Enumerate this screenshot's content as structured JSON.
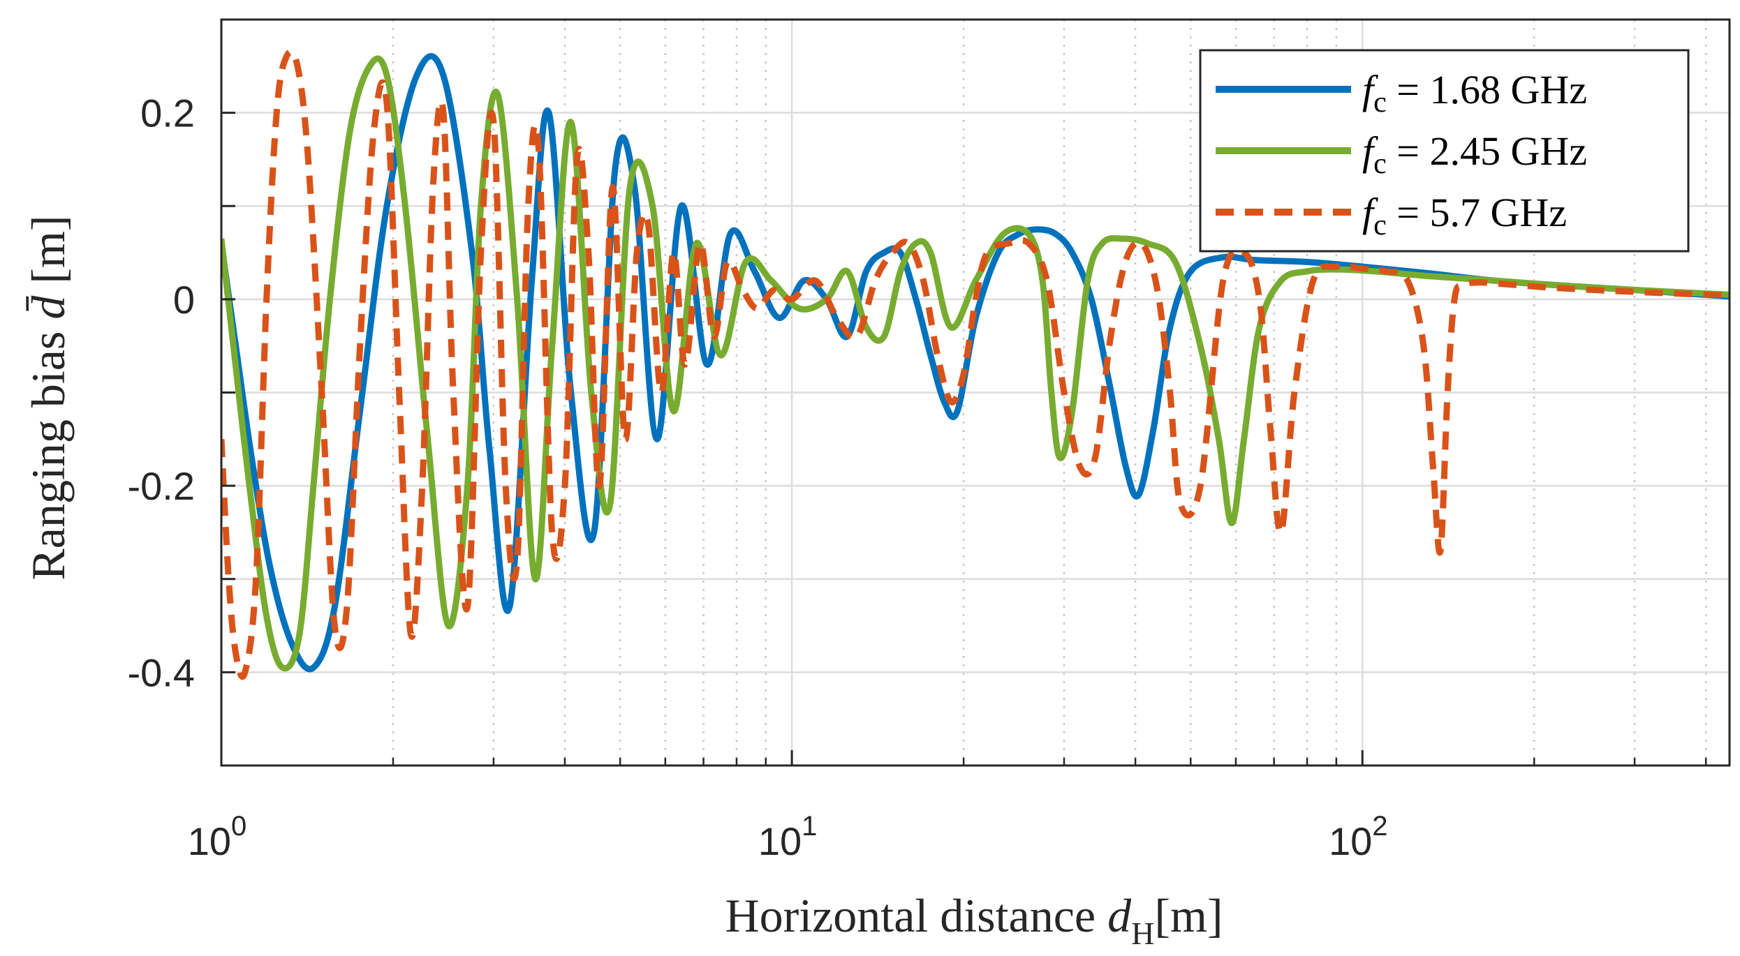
{
  "chart_data": {
    "type": "line",
    "title": "",
    "xlabel": "Horizontal distance d_H [m]",
    "xlabel_parts": {
      "prefix": "Horizontal distance ",
      "symbol": "d",
      "subscript": "H",
      "unit": "[m]"
    },
    "ylabel": "Ranging bias d̄ [m]",
    "ylabel_parts": {
      "prefix": "Ranging bias ",
      "symbol": "d̄",
      "unit": " [m]"
    },
    "xscale": "log",
    "xlim": [
      1,
      440
    ],
    "ylim": [
      -0.5,
      0.3
    ],
    "grid": true,
    "legend_position": "top-right",
    "xticks": [
      {
        "value": 1,
        "base": "10",
        "exp": "0"
      },
      {
        "value": 10,
        "base": "10",
        "exp": "1"
      },
      {
        "value": 100,
        "base": "10",
        "exp": "2"
      }
    ],
    "yticks": [
      {
        "value": 0.2,
        "label": "0.2"
      },
      {
        "value": 0,
        "label": "0"
      },
      {
        "value": -0.2,
        "label": "-0.2"
      },
      {
        "value": -0.4,
        "label": "-0.4"
      }
    ],
    "series": [
      {
        "name": "f_c = 1.68 GHz",
        "legend_lhs": "f",
        "legend_sub": "c",
        "legend_rhs": " = 1.68 GHz",
        "color": "#0072BD",
        "dash": "solid",
        "x": [
          1.0,
          1.06,
          1.13,
          1.22,
          1.33,
          1.45,
          1.58,
          1.75,
          1.95,
          2.2,
          2.45,
          2.75,
          2.95,
          3.2,
          3.5,
          3.75,
          4.1,
          4.5,
          4.9,
          5.3,
          5.8,
          6.4,
          7.1,
          7.8,
          8.6,
          9.5,
          10.5,
          11.5,
          12.5,
          13.5,
          14.5,
          15.5,
          16.5,
          17.5,
          18.5,
          19.5,
          21.0,
          23.0,
          25.0,
          27.0,
          29.0,
          31.0,
          33.5,
          36.0,
          38.5,
          40.5,
          43.0,
          46.0,
          50.0,
          57.0,
          65.0,
          80.0,
          100.0,
          130.0,
          170.0,
          220.0,
          300.0,
          440.0
        ],
        "y": [
          0.06,
          -0.05,
          -0.17,
          -0.29,
          -0.37,
          -0.395,
          -0.33,
          -0.12,
          0.1,
          0.24,
          0.24,
          0.05,
          -0.16,
          -0.33,
          0.02,
          0.2,
          -0.1,
          -0.25,
          0.14,
          0.12,
          -0.15,
          0.1,
          -0.07,
          0.07,
          0.03,
          -0.02,
          0.02,
          0.0,
          -0.04,
          0.03,
          0.05,
          0.05,
          0.0,
          -0.06,
          -0.11,
          -0.12,
          -0.02,
          0.05,
          0.07,
          0.075,
          0.07,
          0.05,
          0.0,
          -0.09,
          -0.18,
          -0.21,
          -0.14,
          -0.03,
          0.03,
          0.045,
          0.042,
          0.04,
          0.035,
          0.028,
          0.02,
          0.015,
          0.01,
          0.003
        ]
      },
      {
        "name": "f_c = 2.45 GHz",
        "legend_lhs": "f",
        "legend_sub": "c",
        "legend_rhs": " = 2.45 GHz",
        "color": "#77AC30",
        "dash": "solid",
        "x": [
          1.0,
          1.05,
          1.12,
          1.2,
          1.28,
          1.37,
          1.45,
          1.55,
          1.68,
          1.82,
          1.95,
          2.1,
          2.3,
          2.5,
          2.7,
          2.85,
          3.05,
          3.3,
          3.55,
          3.8,
          4.1,
          4.45,
          4.8,
          5.2,
          5.7,
          6.2,
          6.8,
          7.5,
          8.3,
          9.2,
          10.3,
          11.5,
          12.5,
          13.5,
          14.5,
          15.5,
          16.5,
          17.5,
          19.0,
          21.0,
          23.5,
          26.0,
          27.5,
          28.5,
          29.5,
          31.0,
          33.0,
          35.0,
          38.0,
          42.0,
          47.0,
          52.0,
          56.0,
          59.0,
          62.0,
          66.0,
          72.0,
          80.0,
          90.0,
          105.0,
          130.0,
          170.0,
          220.0,
          300.0,
          440.0
        ],
        "y": [
          0.065,
          -0.05,
          -0.2,
          -0.34,
          -0.395,
          -0.36,
          -0.2,
          0.0,
          0.18,
          0.25,
          0.24,
          0.1,
          -0.15,
          -0.35,
          -0.2,
          0.1,
          0.22,
          0.0,
          -0.3,
          -0.05,
          0.19,
          -0.1,
          -0.22,
          0.12,
          0.1,
          -0.12,
          0.06,
          -0.06,
          0.04,
          0.02,
          -0.01,
          0.0,
          0.03,
          -0.03,
          -0.04,
          0.03,
          0.06,
          0.05,
          -0.03,
          0.02,
          0.07,
          0.07,
          0.02,
          -0.1,
          -0.17,
          -0.12,
          0.02,
          0.06,
          0.065,
          0.06,
          0.04,
          -0.05,
          -0.15,
          -0.24,
          -0.15,
          -0.03,
          0.02,
          0.03,
          0.032,
          0.03,
          0.025,
          0.02,
          0.015,
          0.01,
          0.005
        ]
      },
      {
        "name": "f_c = 5.7 GHz",
        "legend_lhs": "f",
        "legend_sub": "c",
        "legend_rhs": " = 5.7 GHz",
        "color": "#D95319",
        "dash": "dashed",
        "x": [
          1.0,
          1.03,
          1.06,
          1.1,
          1.15,
          1.2,
          1.25,
          1.3,
          1.36,
          1.42,
          1.5,
          1.58,
          1.66,
          1.75,
          1.85,
          1.95,
          2.05,
          2.15,
          2.25,
          2.35,
          2.45,
          2.55,
          2.7,
          2.85,
          3.0,
          3.15,
          3.3,
          3.45,
          3.6,
          3.8,
          4.0,
          4.2,
          4.4,
          4.6,
          4.85,
          5.1,
          5.35,
          5.6,
          5.9,
          6.2,
          6.5,
          6.9,
          7.3,
          7.7,
          8.2,
          8.7,
          9.3,
          10.0,
          11.0,
          12.0,
          13.0,
          14.0,
          15.0,
          16.0,
          17.0,
          18.0,
          19.0,
          20.0,
          21.0,
          22.0,
          24.0,
          26.0,
          28.0,
          30.0,
          32.0,
          34.0,
          36.0,
          38.0,
          40.0,
          42.0,
          44.0,
          46.0,
          48.0,
          52.0,
          57.0,
          62.0,
          66.0,
          69.0,
          72.0,
          76.0,
          82.0,
          90.0,
          100.0,
          110.0,
          120.0,
          128.0,
          133.0,
          137.0,
          141.0,
          145.0,
          150.0,
          160.0,
          180.0,
          220.0,
          300.0,
          440.0
        ],
        "y": [
          -0.15,
          -0.3,
          -0.38,
          -0.4,
          -0.3,
          0.0,
          0.2,
          0.26,
          0.25,
          0.15,
          -0.1,
          -0.35,
          -0.33,
          -0.05,
          0.18,
          0.21,
          -0.1,
          -0.36,
          -0.2,
          0.12,
          0.2,
          -0.1,
          -0.33,
          0.05,
          0.19,
          -0.2,
          -0.28,
          0.1,
          0.16,
          -0.25,
          -0.2,
          0.15,
          0.05,
          -0.2,
          0.12,
          -0.15,
          0.05,
          0.08,
          -0.1,
          0.05,
          -0.07,
          0.06,
          -0.04,
          0.04,
          0.01,
          -0.01,
          0.01,
          0.0,
          0.02,
          -0.02,
          -0.04,
          0.02,
          0.05,
          0.06,
          0.02,
          -0.06,
          -0.11,
          -0.08,
          0.0,
          0.05,
          0.06,
          0.06,
          0.02,
          -0.1,
          -0.18,
          -0.17,
          -0.05,
          0.03,
          0.06,
          0.05,
          0.0,
          -0.1,
          -0.22,
          -0.2,
          0.02,
          0.05,
          0.0,
          -0.14,
          -0.25,
          -0.1,
          0.02,
          0.035,
          0.033,
          0.03,
          0.02,
          -0.05,
          -0.18,
          -0.27,
          -0.1,
          0.0,
          0.015,
          0.018,
          0.016,
          0.012,
          0.008,
          0.004
        ]
      }
    ]
  }
}
